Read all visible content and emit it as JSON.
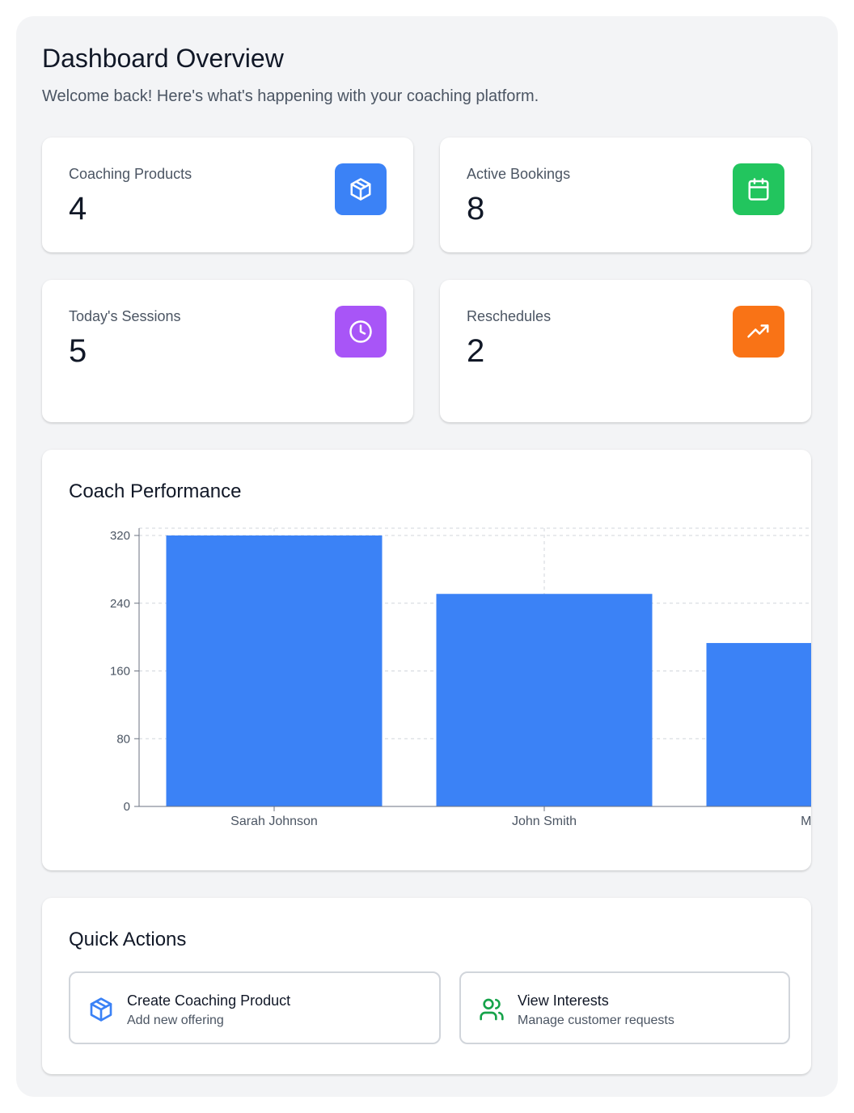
{
  "header": {
    "title": "Dashboard Overview",
    "subtitle": "Welcome back! Here's what's happening with your coaching platform."
  },
  "stats": [
    {
      "label": "Coaching Products",
      "value": "4",
      "icon": "package-icon",
      "color": "#3b82f6"
    },
    {
      "label": "Active Bookings",
      "value": "8",
      "icon": "calendar-icon",
      "color": "#22c55e"
    },
    {
      "label": "Today's Sessions",
      "value": "5",
      "icon": "clock-icon",
      "color": "#a855f7"
    },
    {
      "label": "Reschedules",
      "value": "2",
      "icon": "trending-up-icon",
      "color": "#f97316"
    }
  ],
  "performance": {
    "title": "Coach Performance"
  },
  "chart_data": {
    "type": "bar",
    "title": "Coach Performance",
    "categories": [
      "Sarah Johnson",
      "John Smith",
      "Mike"
    ],
    "values": [
      320,
      251,
      193
    ],
    "ylim": [
      0,
      320
    ],
    "yticks": [
      0,
      80,
      160,
      240,
      320
    ],
    "grid": true,
    "bar_color": "#3b82f6",
    "xlabel": "",
    "ylabel": ""
  },
  "quick_actions": {
    "title": "Quick Actions",
    "items": [
      {
        "title": "Create Coaching Product",
        "desc": "Add new offering",
        "icon": "package-icon",
        "color": "#3b82f6"
      },
      {
        "title": "View Interests",
        "desc": "Manage customer requests",
        "icon": "users-icon",
        "color": "#16a34a"
      }
    ]
  }
}
